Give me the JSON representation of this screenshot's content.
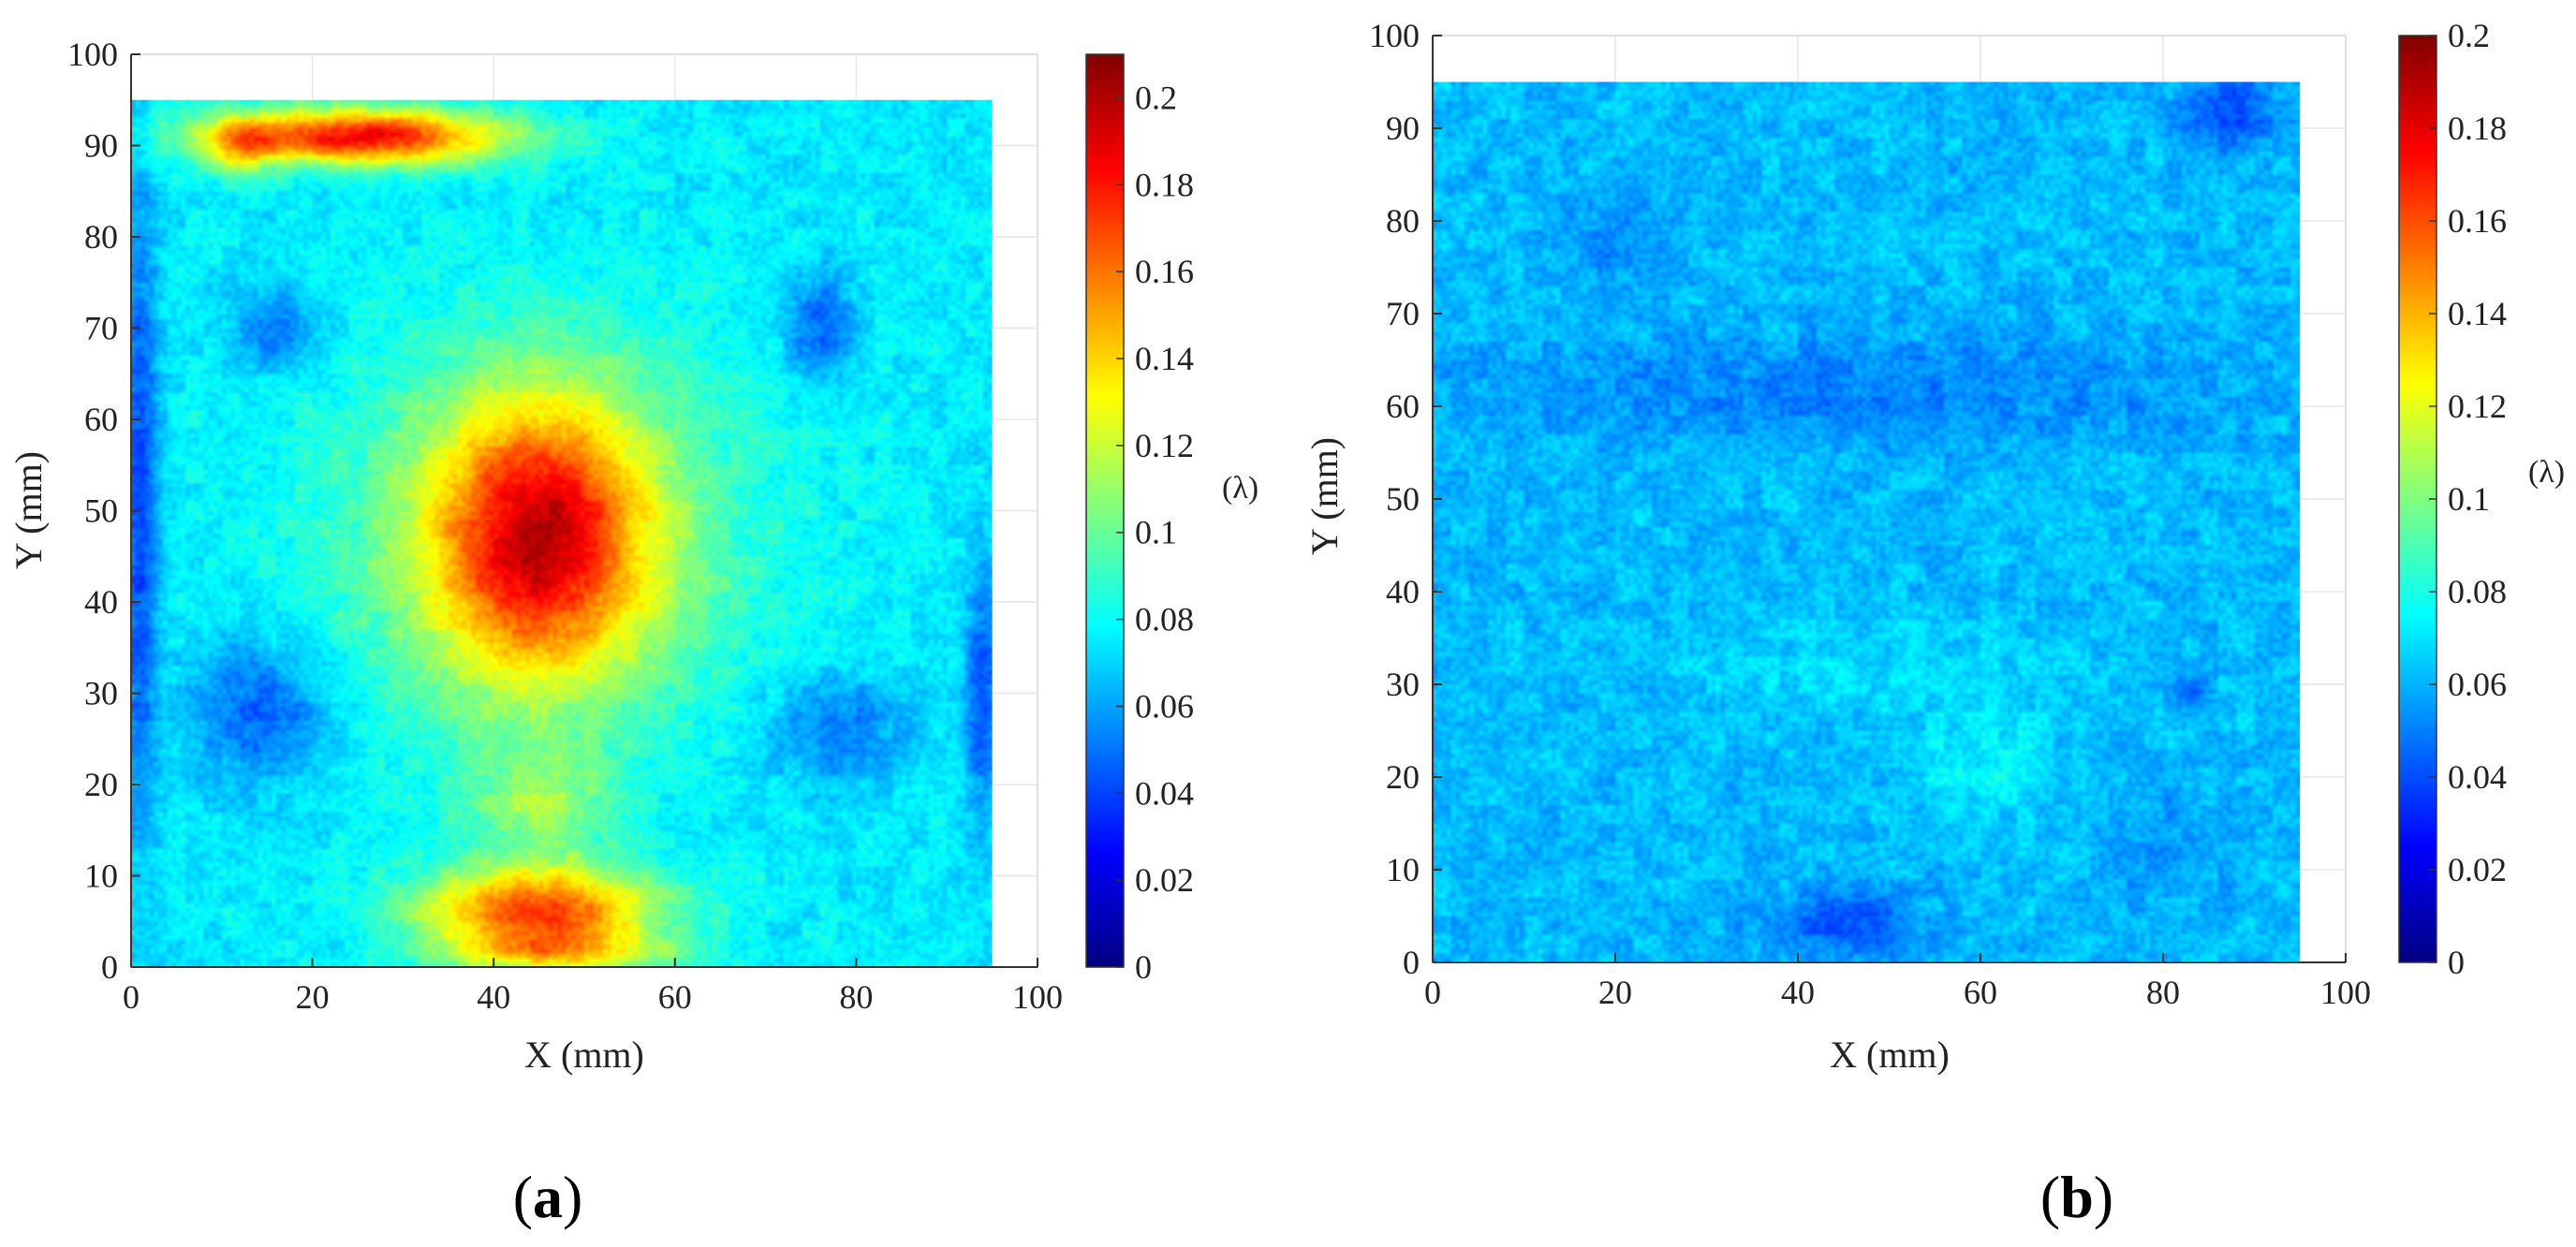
{
  "chart_data": [
    {
      "type": "heatmap",
      "panel_label": "a",
      "xlabel": "X (mm)",
      "ylabel": "Y (mm)",
      "xlim": [
        0,
        100
      ],
      "ylim": [
        0,
        100
      ],
      "data_extent": {
        "x": [
          0,
          95
        ],
        "y": [
          0,
          95
        ]
      },
      "x_ticks": [
        0,
        20,
        40,
        60,
        80,
        100
      ],
      "y_ticks": [
        0,
        10,
        20,
        30,
        40,
        50,
        60,
        70,
        80,
        90,
        100
      ],
      "grid": true,
      "colorbar": {
        "label": "(λ)",
        "range": [
          0,
          0.21
        ],
        "ticks": [
          0,
          0.02,
          0.04,
          0.06,
          0.08,
          0.1,
          0.12,
          0.14,
          0.16,
          0.18,
          0.2
        ],
        "tick_labels": [
          "0",
          "0.02",
          "0.04",
          "0.06",
          "0.08",
          "0.1",
          "0.12",
          "0.14",
          "0.16",
          "0.18",
          "0.2"
        ],
        "colormap": "jet"
      },
      "field": {
        "base": 0.075,
        "features": [
          {
            "x": 45,
            "y": 47,
            "sx": 12,
            "sy": 15,
            "value": 0.095
          },
          {
            "x": 45,
            "y": 47,
            "sx": 24,
            "sy": 22,
            "value": 0.03
          },
          {
            "x": 25,
            "y": 91,
            "sx": 16,
            "sy": 3,
            "value": 0.11
          },
          {
            "x": 12,
            "y": 90,
            "sx": 4,
            "sy": 3,
            "value": 0.04
          },
          {
            "x": 45,
            "y": 6,
            "sx": 13,
            "sy": 5,
            "value": 0.095
          },
          {
            "x": 48,
            "y": 1.5,
            "sx": 13,
            "sy": 2,
            "value": 0.04
          },
          {
            "x": 45,
            "y": 18,
            "sx": 8,
            "sy": 6,
            "value": 0.03
          },
          {
            "x": 14,
            "y": 28,
            "sx": 8,
            "sy": 8,
            "value": -0.03
          },
          {
            "x": 16,
            "y": 70,
            "sx": 5,
            "sy": 5,
            "value": -0.025
          },
          {
            "x": 76,
            "y": 70,
            "sx": 4,
            "sy": 6,
            "value": -0.03
          },
          {
            "x": 78,
            "y": 26,
            "sx": 8,
            "sy": 6,
            "value": -0.025
          },
          {
            "x": 1,
            "y": 50,
            "sx": 2,
            "sy": 35,
            "value": -0.035
          },
          {
            "x": 94,
            "y": 30,
            "sx": 2,
            "sy": 15,
            "value": -0.03
          }
        ]
      }
    },
    {
      "type": "heatmap",
      "panel_label": "b",
      "xlabel": "X (mm)",
      "ylabel": "Y (mm)",
      "xlim": [
        0,
        100
      ],
      "ylim": [
        0,
        100
      ],
      "data_extent": {
        "x": [
          0,
          95
        ],
        "y": [
          0,
          95
        ]
      },
      "x_ticks": [
        0,
        20,
        40,
        60,
        80,
        100
      ],
      "y_ticks": [
        0,
        10,
        20,
        30,
        40,
        50,
        60,
        70,
        80,
        90,
        100
      ],
      "grid": true,
      "colorbar": {
        "label": "(λ)",
        "range": [
          0,
          0.2
        ],
        "ticks": [
          0,
          0.02,
          0.04,
          0.06,
          0.08,
          0.1,
          0.12,
          0.14,
          0.16,
          0.18,
          0.2
        ],
        "tick_labels": [
          "0",
          "0.02",
          "0.04",
          "0.06",
          "0.08",
          "0.1",
          "0.12",
          "0.14",
          "0.16",
          "0.18",
          "0.2"
        ],
        "colormap": "jet"
      },
      "field": {
        "base": 0.062,
        "features": [
          {
            "x": 48,
            "y": 62,
            "sx": 40,
            "sy": 6,
            "value": -0.012
          },
          {
            "x": 20,
            "y": 78,
            "sx": 6,
            "sy": 5,
            "value": -0.01
          },
          {
            "x": 87,
            "y": 92,
            "sx": 5,
            "sy": 4,
            "value": -0.025
          },
          {
            "x": 45,
            "y": 4,
            "sx": 9,
            "sy": 4,
            "value": -0.02
          },
          {
            "x": 83,
            "y": 29,
            "sx": 1.6,
            "sy": 1.6,
            "value": -0.02
          },
          {
            "x": 60,
            "y": 22,
            "sx": 8,
            "sy": 7,
            "value": 0.012
          },
          {
            "x": 80,
            "y": 12,
            "sx": 6,
            "sy": 6,
            "value": -0.008
          },
          {
            "x": 45,
            "y": 32,
            "sx": 20,
            "sy": 5,
            "value": 0.006
          }
        ]
      }
    }
  ]
}
